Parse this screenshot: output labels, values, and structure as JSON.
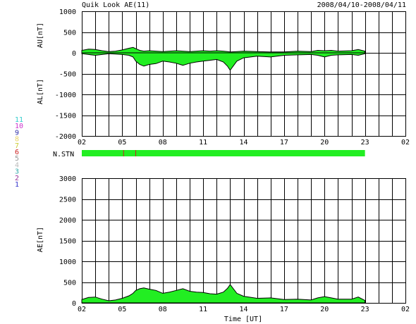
{
  "header": {
    "title": "Quik Look AE(11)",
    "date_range": "2008/04/10-2008/04/11"
  },
  "colors": {
    "fill": "#22ee22",
    "marker": "#cc2222",
    "line": "#000000"
  },
  "legend": [
    {
      "label": "11",
      "color": "#33cccc"
    },
    {
      "label": "10",
      "color": "#cc33cc"
    },
    {
      "label": "9",
      "color": "#3333aa"
    },
    {
      "label": "8",
      "color": "#e8d46a"
    },
    {
      "label": "7",
      "color": "#cccc33"
    },
    {
      "label": "6",
      "color": "#cc2222"
    },
    {
      "label": "5",
      "color": "#999999"
    },
    {
      "label": "4",
      "color": "#bbbbbb"
    },
    {
      "label": "3",
      "color": "#33aaaa"
    },
    {
      "label": "2",
      "color": "#993399"
    },
    {
      "label": "1",
      "color": "#3333cc"
    }
  ],
  "chart_data": [
    {
      "type": "area",
      "name": "upper",
      "ylabel_top": "AU[nT]",
      "ylabel_bottom": "AL[nT]",
      "ylim": [
        -2000,
        1000
      ],
      "yticks": [
        "1000",
        "500",
        "0",
        "-500",
        "-1000",
        "-1500",
        "-2000"
      ],
      "ytick_values": [
        1000,
        500,
        0,
        -500,
        -1000,
        -1500,
        -2000
      ],
      "xlim": [
        2,
        26
      ],
      "xticks": [
        "02",
        "05",
        "08",
        "11",
        "14",
        "17",
        "20",
        "23",
        "02"
      ],
      "xtick_values": [
        2,
        5,
        8,
        11,
        14,
        17,
        20,
        23,
        26
      ],
      "grid": true,
      "x": [
        2.0,
        2.5,
        3.0,
        3.5,
        4.0,
        4.5,
        5.0,
        5.5,
        5.8,
        6.0,
        6.3,
        6.6,
        7.0,
        7.5,
        8.0,
        8.5,
        9.0,
        9.5,
        10.0,
        10.5,
        11.0,
        11.5,
        12.0,
        12.5,
        12.8,
        13.0,
        13.5,
        14.0,
        15.0,
        16.0,
        17.0,
        18.0,
        19.0,
        19.5,
        20.0,
        20.5,
        21.0,
        22.0,
        22.5,
        23.0
      ],
      "au": [
        60,
        90,
        80,
        50,
        30,
        40,
        70,
        110,
        130,
        100,
        60,
        40,
        50,
        40,
        30,
        40,
        50,
        40,
        30,
        40,
        50,
        40,
        50,
        40,
        30,
        20,
        30,
        40,
        30,
        20,
        20,
        40,
        30,
        60,
        50,
        60,
        40,
        50,
        80,
        40
      ],
      "al": [
        -20,
        -40,
        -60,
        -40,
        -20,
        -30,
        -40,
        -60,
        -100,
        -200,
        -280,
        -320,
        -280,
        -260,
        -200,
        -220,
        -250,
        -300,
        -250,
        -220,
        -200,
        -180,
        -160,
        -220,
        -320,
        -420,
        -200,
        -120,
        -80,
        -100,
        -60,
        -50,
        -40,
        -60,
        -100,
        -60,
        -50,
        -40,
        -60,
        -20
      ]
    },
    {
      "type": "station-bar",
      "name": "stations",
      "label": "N.STN",
      "xlim": [
        2,
        26
      ],
      "start": 2.0,
      "end": 23.0,
      "markers": [
        5.1,
        6.0
      ]
    },
    {
      "type": "area",
      "name": "lower",
      "ylabel": "AE[nT]",
      "ylim": [
        0,
        3000
      ],
      "yticks": [
        "3000",
        "2500",
        "2000",
        "1500",
        "1000",
        "500",
        "0"
      ],
      "ytick_values": [
        3000,
        2500,
        2000,
        1500,
        1000,
        500,
        0
      ],
      "xlim": [
        2,
        26
      ],
      "xticks": [
        "02",
        "05",
        "08",
        "11",
        "14",
        "17",
        "20",
        "23",
        "02"
      ],
      "xtick_values": [
        2,
        5,
        8,
        11,
        14,
        17,
        20,
        23,
        26
      ],
      "xlabel": "Time [UT]",
      "grid": true,
      "x": [
        2.0,
        2.5,
        3.0,
        3.5,
        4.0,
        4.5,
        5.0,
        5.5,
        5.8,
        6.0,
        6.3,
        6.6,
        7.0,
        7.5,
        8.0,
        8.5,
        9.0,
        9.5,
        10.0,
        10.5,
        11.0,
        11.5,
        12.0,
        12.5,
        12.8,
        13.0,
        13.5,
        14.0,
        15.0,
        16.0,
        17.0,
        18.0,
        19.0,
        19.5,
        20.0,
        20.5,
        21.0,
        22.0,
        22.5,
        23.0
      ],
      "values": [
        80,
        130,
        140,
        90,
        50,
        70,
        110,
        170,
        230,
        300,
        340,
        360,
        330,
        300,
        230,
        260,
        300,
        340,
        280,
        260,
        250,
        220,
        210,
        260,
        350,
        440,
        230,
        160,
        110,
        120,
        80,
        90,
        70,
        120,
        150,
        120,
        90,
        90,
        140,
        60
      ]
    }
  ]
}
